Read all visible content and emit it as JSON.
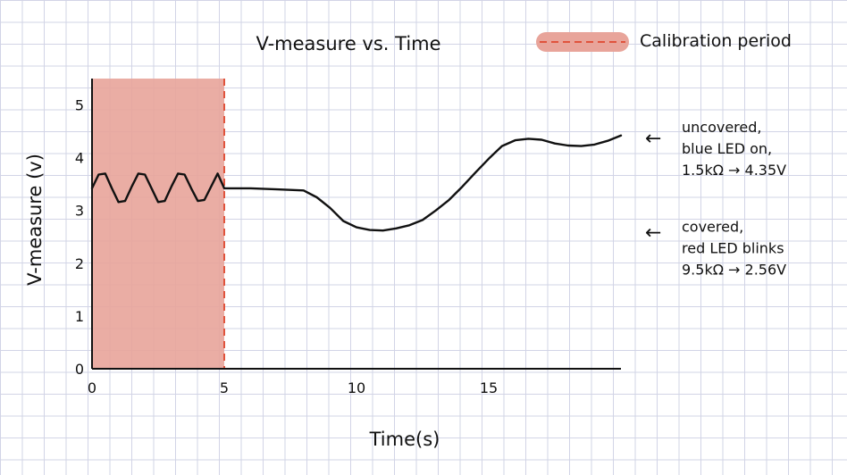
{
  "chart_data": {
    "type": "line",
    "title": "V-measure vs. Time",
    "xlabel": "Time(s)",
    "ylabel": "V-measure (v)",
    "xlim": [
      0,
      20
    ],
    "ylim": [
      0,
      5.5
    ],
    "x_ticks": [
      0,
      5,
      10,
      15
    ],
    "y_ticks": [
      0,
      1,
      2,
      3,
      4,
      5
    ],
    "grid": false,
    "legend": {
      "position": "top-right",
      "label": "Calibration period",
      "color": "#e8a49a",
      "line_color": "#e0533c"
    },
    "calibration_period": {
      "start": 0,
      "end": 5
    },
    "series": [
      {
        "color": "#111111",
        "x": [
          0,
          0.25,
          0.5,
          0.75,
          1.0,
          1.25,
          1.5,
          1.75,
          2.0,
          2.25,
          2.5,
          2.75,
          3.0,
          3.25,
          3.5,
          3.75,
          4.0,
          4.25,
          4.5,
          4.75,
          5.0,
          6.0,
          7.0,
          8.0,
          8.5,
          9.0,
          9.5,
          10.0,
          10.5,
          11.0,
          11.5,
          12.0,
          12.5,
          13.0,
          13.5,
          14.0,
          14.5,
          15.0,
          15.5,
          16.0,
          16.5,
          17.0,
          17.5,
          18.0,
          18.5,
          19.0,
          19.5,
          20.0
        ],
        "y": [
          3.42,
          3.68,
          3.7,
          3.42,
          3.16,
          3.18,
          3.45,
          3.7,
          3.68,
          3.42,
          3.16,
          3.18,
          3.45,
          3.7,
          3.68,
          3.42,
          3.18,
          3.2,
          3.45,
          3.7,
          3.42,
          3.42,
          3.4,
          3.38,
          3.25,
          3.05,
          2.8,
          2.68,
          2.63,
          2.62,
          2.66,
          2.72,
          2.82,
          3.0,
          3.2,
          3.45,
          3.72,
          3.98,
          4.22,
          4.33,
          4.36,
          4.34,
          4.27,
          4.23,
          4.22,
          4.25,
          4.32,
          4.42
        ]
      }
    ],
    "annotations": [
      {
        "lines": [
          "uncovered,",
          "blue LED on,",
          "1.5kΩ → 4.35V"
        ],
        "arrow": "←",
        "y": 4.35
      },
      {
        "lines": [
          "covered,",
          "red LED blinks",
          "9.5kΩ → 2.56V"
        ],
        "arrow": "←",
        "y": 2.56
      }
    ]
  }
}
